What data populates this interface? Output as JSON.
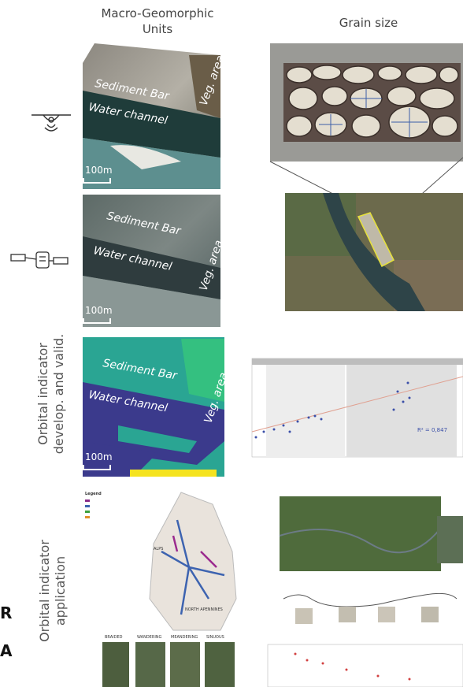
{
  "headers": {
    "left": [
      "Macro-Geomorphic",
      "Units"
    ],
    "right": "Grain size"
  },
  "panels": [
    {
      "labels": [
        "Sediment Bar",
        "Water channel",
        "Veg. area"
      ],
      "scale": "100m"
    },
    {
      "labels": [
        "Sediment Bar",
        "Water channel",
        "Veg. area"
      ],
      "scale": "100m"
    },
    {
      "labels": [
        "Sediment Bar",
        "Water channel",
        "Veg. area"
      ],
      "scale": "100m"
    }
  ],
  "row_labels": [
    [
      "Orbital indicator",
      "develop. and valid."
    ],
    [
      "Orbital indicator",
      "application"
    ]
  ],
  "edge_text": [
    "R",
    "A"
  ],
  "map": {
    "title": "Legend",
    "regions": [
      "ALPS",
      "NORTH APENNINES"
    ]
  },
  "strip_labels": [
    "BRAIDED",
    "WANDERING",
    "MEANDERING",
    "SINUOUS"
  ],
  "scatter": {
    "annotation": "R² = 0,847"
  }
}
